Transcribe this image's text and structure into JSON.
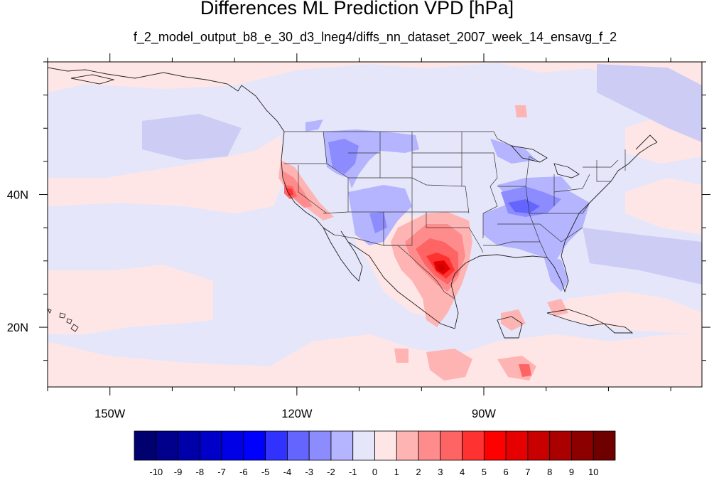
{
  "title": "Differences ML Prediction VPD [hPa]",
  "subtitle": "f_2_model_output_b8_e_30_d3_lneg4/diffs_nn_dataset_2007_week_14_ensavg_f_2",
  "map": {
    "projection": "cylindrical equidistant",
    "lon_range": [
      -160,
      -55
    ],
    "lat_range": [
      11,
      60
    ],
    "lon_ticks": [
      {
        "value": -150,
        "label": "150W"
      },
      {
        "value": -120,
        "label": "120W"
      },
      {
        "value": -90,
        "label": "90W"
      }
    ],
    "lat_ticks": [
      {
        "value": 40,
        "label": "40N"
      },
      {
        "value": 20,
        "label": "20N"
      }
    ],
    "background_level": "0 to -1 (light blue)",
    "features": [
      "coastlines",
      "US state borders",
      "Hawaii",
      "Alaska coast"
    ]
  },
  "colorbar": {
    "labels": [
      "-10",
      "-9",
      "-8",
      "-7",
      "-6",
      "-5",
      "-4",
      "-3",
      "-2",
      "-1",
      "0",
      "1",
      "2",
      "3",
      "4",
      "5",
      "6",
      "7",
      "8",
      "9",
      "10"
    ],
    "colors": [
      "#00006e",
      "#00008c",
      "#0000aa",
      "#0000c8",
      "#0000e6",
      "#0000ff",
      "#3232ff",
      "#6464ff",
      "#8c8cff",
      "#b4b4ff",
      "#e6e6fa",
      "#ffe6e6",
      "#ffb4b4",
      "#ff8c8c",
      "#ff6464",
      "#ff3232",
      "#ff0000",
      "#e60000",
      "#c80000",
      "#aa0000",
      "#8c0000",
      "#6e0000"
    ]
  }
}
